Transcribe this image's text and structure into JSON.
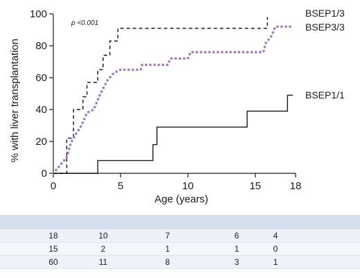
{
  "chart_data": {
    "type": "line",
    "title": "",
    "xlabel": "Age (years)",
    "ylabel": "% with liver transplantation",
    "xlim": [
      0,
      18
    ],
    "ylim": [
      0,
      100
    ],
    "xticks": [
      0,
      5,
      10,
      15,
      18
    ],
    "yticks": [
      0,
      20,
      40,
      60,
      80,
      100
    ],
    "annotation": "p <0.001",
    "grid": false,
    "legend": "direct labels at right end of each curve",
    "series": [
      {
        "name": "BSEP1/3",
        "style": "dashed",
        "color": "#1a1a1a",
        "points": [
          [
            0,
            0
          ],
          [
            1,
            0
          ],
          [
            1,
            22
          ],
          [
            1.5,
            22
          ],
          [
            1.5,
            40
          ],
          [
            2.2,
            40
          ],
          [
            2.2,
            48
          ],
          [
            2.5,
            48
          ],
          [
            2.5,
            57
          ],
          [
            3.3,
            57
          ],
          [
            3.3,
            65
          ],
          [
            3.7,
            65
          ],
          [
            3.7,
            74
          ],
          [
            4.2,
            74
          ],
          [
            4.2,
            83
          ],
          [
            4.8,
            83
          ],
          [
            4.8,
            91
          ],
          [
            15.9,
            91
          ],
          [
            15.9,
            98
          ]
        ]
      },
      {
        "name": "BSEP3/3",
        "style": "dotted",
        "color": "#a07cbf",
        "points": [
          [
            0,
            0
          ],
          [
            0.5,
            5
          ],
          [
            1,
            10
          ],
          [
            1.3,
            19
          ],
          [
            1.7,
            25
          ],
          [
            2.1,
            30
          ],
          [
            2.5,
            38
          ],
          [
            3,
            40
          ],
          [
            3.5,
            50
          ],
          [
            4,
            58
          ],
          [
            4.5,
            63
          ],
          [
            5,
            65
          ],
          [
            6.5,
            65
          ],
          [
            6.6,
            68
          ],
          [
            8.5,
            68
          ],
          [
            8.7,
            72
          ],
          [
            10,
            72
          ],
          [
            10.2,
            76
          ],
          [
            15.6,
            76
          ],
          [
            15.8,
            82
          ],
          [
            16.2,
            86
          ],
          [
            16.5,
            92
          ],
          [
            17.8,
            92
          ]
        ]
      },
      {
        "name": "BSEP1/1",
        "style": "solid",
        "color": "#1a1a1a",
        "points": [
          [
            0,
            0
          ],
          [
            3.3,
            0
          ],
          [
            3.3,
            8
          ],
          [
            7.4,
            8
          ],
          [
            7.4,
            18
          ],
          [
            7.7,
            18
          ],
          [
            7.7,
            29
          ],
          [
            14.4,
            29
          ],
          [
            14.4,
            39
          ],
          [
            17.4,
            39
          ],
          [
            17.4,
            49
          ],
          [
            17.8,
            49
          ]
        ]
      }
    ],
    "risk_table": {
      "rows": [
        [
          "18",
          "10",
          "7",
          "6",
          "4"
        ],
        [
          "15",
          "2",
          "1",
          "1",
          "0"
        ],
        [
          "60",
          "11",
          "8",
          "3",
          "1"
        ]
      ]
    }
  }
}
